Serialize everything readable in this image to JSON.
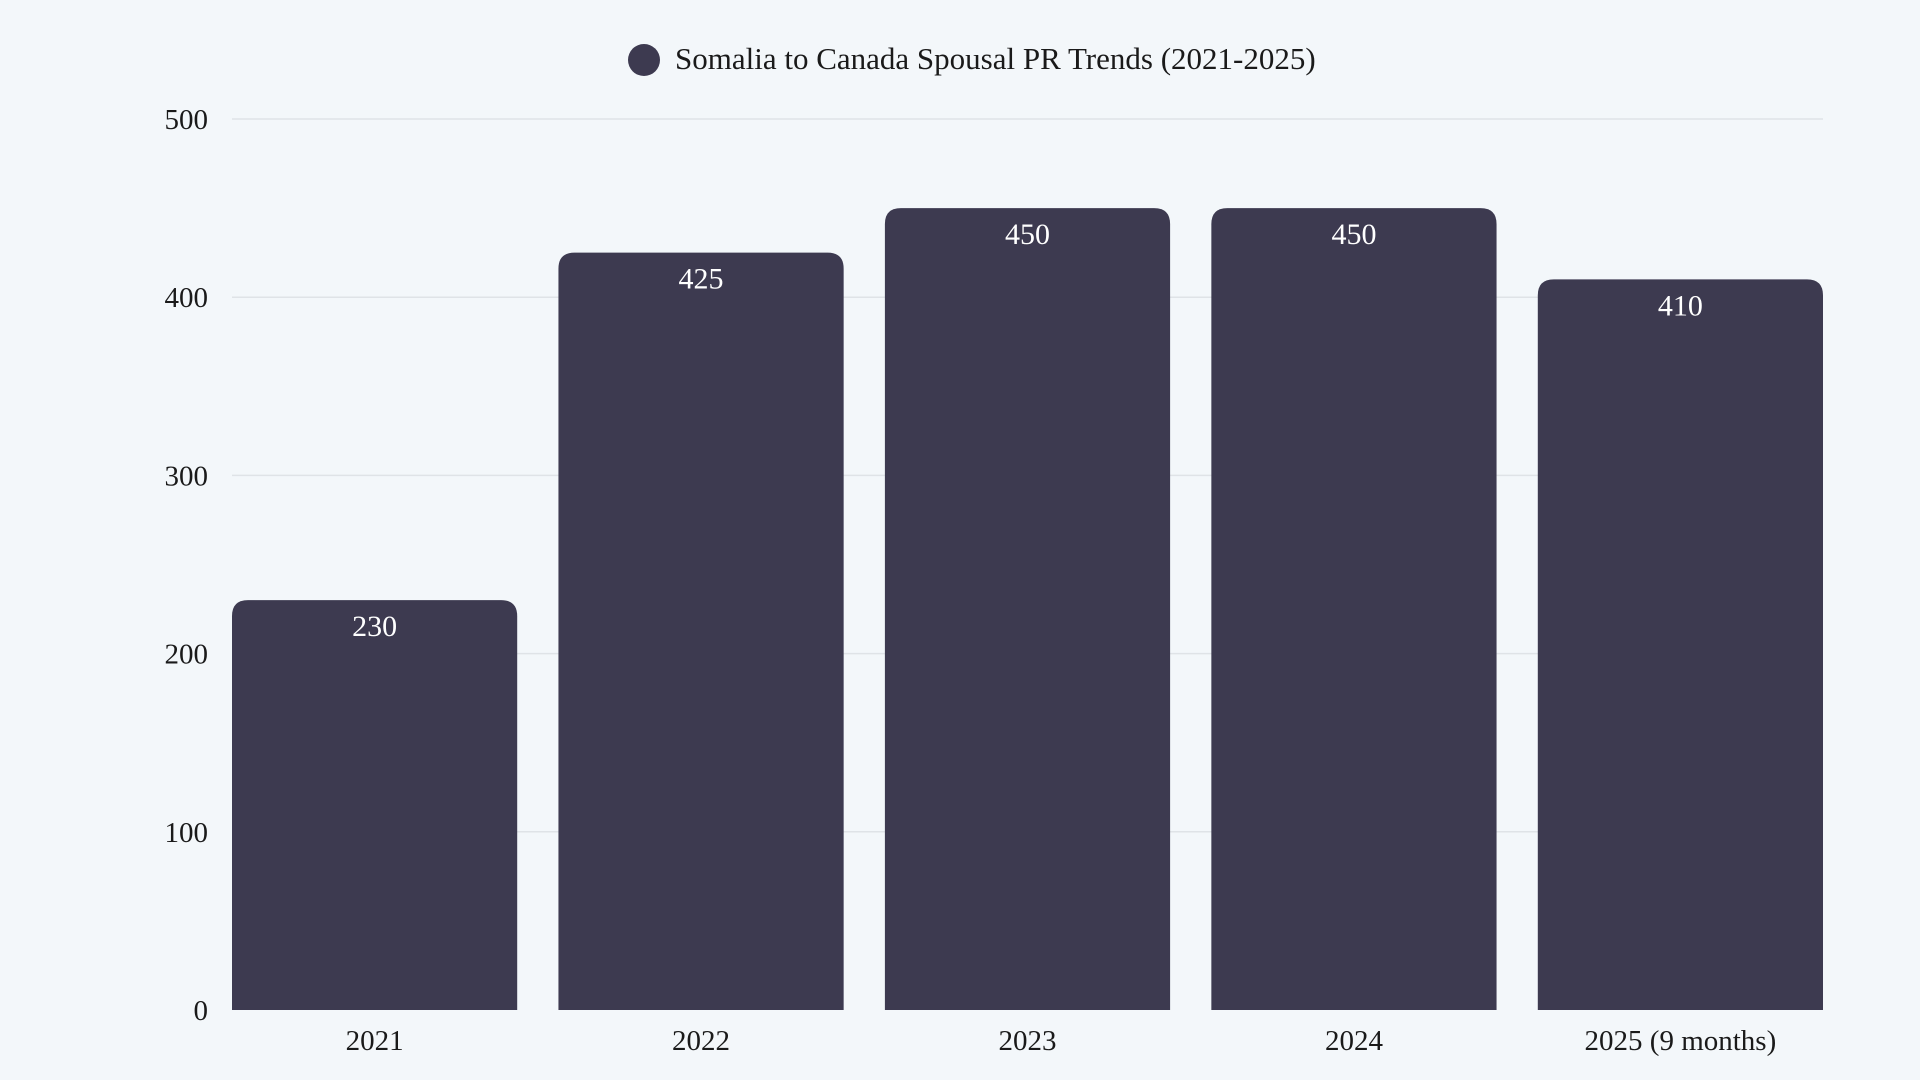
{
  "chart_data": {
    "type": "bar",
    "title": "",
    "xlabel": "",
    "ylabel": "",
    "categories": [
      "2021",
      "2022",
      "2023",
      "2024",
      "2025 (9 months)"
    ],
    "series": [
      {
        "name": "Somalia to Canada Spousal PR Trends (2021-2025)",
        "values": [
          230,
          425,
          450,
          450,
          410
        ]
      }
    ],
    "ylim": [
      0,
      500
    ],
    "yticks": [
      0,
      100,
      200,
      300,
      400,
      500
    ],
    "grid": true,
    "legend": "top-center",
    "data_labels": true,
    "colors": {
      "bar": "#3d3a50",
      "background": "#f3f7fa",
      "grid": "#dfe3e7"
    }
  }
}
